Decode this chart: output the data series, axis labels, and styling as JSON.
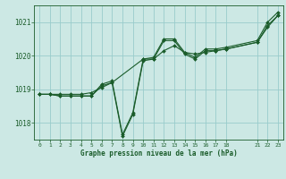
{
  "title": "Graphe pression niveau de la mer (hPa)",
  "bg_color": "#cce8e4",
  "grid_color": "#99cccc",
  "line_color": "#1a5c2a",
  "xlim": [
    -0.5,
    23.5
  ],
  "ylim": [
    1017.5,
    1021.5
  ],
  "yticks": [
    1018,
    1019,
    1020,
    1021
  ],
  "xtick_positions": [
    0,
    1,
    2,
    3,
    4,
    5,
    6,
    7,
    8,
    9,
    10,
    11,
    12,
    13,
    14,
    15,
    16,
    17,
    18,
    21,
    22,
    23
  ],
  "xtick_labels": [
    "0",
    "1",
    "2",
    "3",
    "4",
    "5",
    "6",
    "7",
    "8",
    "9",
    "10",
    "11",
    "12",
    "13",
    "14",
    "15",
    "16",
    "17",
    "18",
    "21",
    "22",
    "23"
  ],
  "line1_x": [
    0,
    1,
    2,
    3,
    4,
    5,
    6,
    7,
    8,
    9,
    10,
    11,
    12,
    13,
    14,
    15,
    16,
    17,
    18,
    21,
    22,
    23
  ],
  "line1_y": [
    1018.85,
    1018.85,
    1018.8,
    1018.8,
    1018.8,
    1018.8,
    1019.15,
    1019.25,
    1017.65,
    1018.3,
    1019.9,
    1019.95,
    1020.5,
    1020.5,
    1020.1,
    1019.95,
    1020.2,
    1020.2,
    1020.25,
    1020.45,
    1021.0,
    1021.3
  ],
  "line2_x": [
    0,
    1,
    2,
    3,
    4,
    5,
    6,
    7,
    8,
    9,
    10,
    11,
    12,
    13,
    14,
    15,
    16,
    17,
    18,
    21,
    22,
    23
  ],
  "line2_y": [
    1018.85,
    1018.85,
    1018.8,
    1018.8,
    1018.8,
    1018.8,
    1019.1,
    1019.2,
    1017.6,
    1018.25,
    1019.85,
    1019.9,
    1020.45,
    1020.45,
    1020.05,
    1019.9,
    1020.15,
    1020.15,
    1020.2,
    1020.4,
    1020.9,
    1021.2
  ],
  "line3_x": [
    0,
    1,
    2,
    3,
    4,
    5,
    6,
    7,
    10,
    11,
    12,
    13,
    14,
    15,
    16,
    17,
    18,
    21,
    22,
    23
  ],
  "line3_y": [
    1018.85,
    1018.85,
    1018.85,
    1018.85,
    1018.85,
    1018.9,
    1019.05,
    1019.2,
    1019.9,
    1019.9,
    1020.15,
    1020.3,
    1020.1,
    1020.05,
    1020.1,
    1020.15,
    1020.2,
    1020.4,
    1020.85,
    1021.2
  ]
}
